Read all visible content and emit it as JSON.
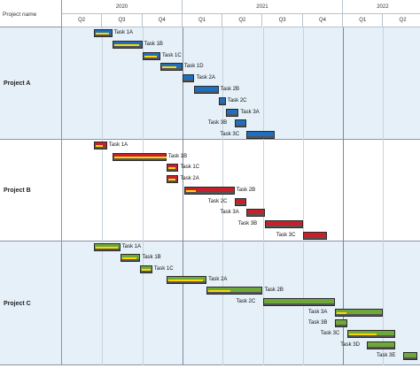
{
  "header": {
    "name_column": "Project name",
    "years": [
      "2020",
      "2021",
      "2022"
    ],
    "quarters": [
      "Q2",
      "Q3",
      "Q4",
      "Q1",
      "Q2",
      "Q3",
      "Q4",
      "Q1",
      "Q2"
    ]
  },
  "projects": [
    {
      "name": "Project A",
      "color": "#1f6fc1",
      "tasks": [
        {
          "label": "Task 1A",
          "start": 0.8,
          "end": 1.25,
          "progress": 0.8
        },
        {
          "label": "Task 1B",
          "start": 1.25,
          "end": 2.0,
          "progress": 0.9
        },
        {
          "label": "Task 1C",
          "start": 2.0,
          "end": 2.45,
          "progress": 0.8
        },
        {
          "label": "Task 1D",
          "start": 2.45,
          "end": 3.0,
          "progress": 0.7
        },
        {
          "label": "Task 2A",
          "start": 3.0,
          "end": 3.3,
          "progress": 0.0
        },
        {
          "label": "Task 2B",
          "start": 3.3,
          "end": 3.9,
          "progress": 0.0
        },
        {
          "label": "Task 2C",
          "start": 3.9,
          "end": 4.08,
          "progress": 0.0
        },
        {
          "label": "Task 3A",
          "start": 4.08,
          "end": 4.4,
          "progress": 0.0
        },
        {
          "label": "Task 3B",
          "start": 4.3,
          "end": 4.6,
          "progress": 0.0
        },
        {
          "label": "Task 3C",
          "start": 4.6,
          "end": 5.3,
          "progress": 0.0
        }
      ]
    },
    {
      "name": "Project B",
      "color": "#c8202a",
      "tasks": [
        {
          "label": "Task 1A",
          "start": 0.8,
          "end": 1.12,
          "progress": 0.6
        },
        {
          "label": "Task 1B",
          "start": 1.25,
          "end": 2.6,
          "progress": 1.0
        },
        {
          "label": "Task 1C",
          "start": 2.6,
          "end": 2.9,
          "progress": 0.7
        },
        {
          "label": "Task 2A",
          "start": 2.6,
          "end": 2.9,
          "progress": 0.7
        },
        {
          "label": "Task 2B",
          "start": 3.05,
          "end": 4.3,
          "progress": 0.2
        },
        {
          "label": "Task 2C",
          "start": 4.3,
          "end": 4.6,
          "progress": 0.0
        },
        {
          "label": "Task 3A",
          "start": 4.6,
          "end": 5.05,
          "progress": 0.0
        },
        {
          "label": "Task 3B",
          "start": 5.05,
          "end": 6.0,
          "progress": 0.0
        },
        {
          "label": "Task 3C",
          "start": 6.0,
          "end": 6.6,
          "progress": 0.0
        }
      ]
    },
    {
      "name": "Project C",
      "color": "#6fa83a",
      "tasks": [
        {
          "label": "Task 1A",
          "start": 0.8,
          "end": 1.45,
          "progress": 0.9
        },
        {
          "label": "Task 1B",
          "start": 1.45,
          "end": 1.95,
          "progress": 0.8
        },
        {
          "label": "Task 1C",
          "start": 1.95,
          "end": 2.25,
          "progress": 0.8
        },
        {
          "label": "Task 2A",
          "start": 2.6,
          "end": 3.6,
          "progress": 0.9
        },
        {
          "label": "Task 2B",
          "start": 3.6,
          "end": 5.0,
          "progress": 0.4
        },
        {
          "label": "Task 2C",
          "start": 5.0,
          "end": 6.8,
          "progress": 0.0
        },
        {
          "label": "Task 3A",
          "start": 6.8,
          "end": 8.0,
          "progress": 0.2
        },
        {
          "label": "Task 3B",
          "start": 6.8,
          "end": 7.1,
          "progress": 0.0
        },
        {
          "label": "Task 3C",
          "start": 7.1,
          "end": 8.3,
          "progress": 0.6
        },
        {
          "label": "Task 3D",
          "start": 7.6,
          "end": 8.3,
          "progress": 0.0
        },
        {
          "label": "Task 3E",
          "start": 8.5,
          "end": 8.85,
          "progress": 0.0
        }
      ]
    }
  ],
  "colors": {
    "band_odd": "#e5f0f8",
    "band_even": "#ffffff",
    "progress": "#ffd800",
    "baseline": "#555555"
  }
}
